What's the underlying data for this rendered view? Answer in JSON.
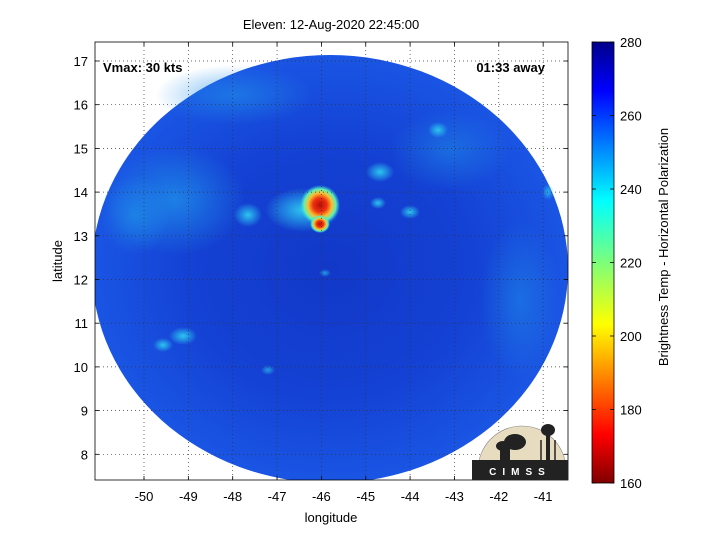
{
  "title": "Eleven: 12-Aug-2020 22:45:00",
  "vmax_label": "Vmax: 30 kts",
  "time_label": "01:33 away",
  "xlabel": "longitude",
  "ylabel": "latitude",
  "colorbar": {
    "label": "Brightness Temp - Horizontal Polarization",
    "ticks": [
      "280",
      "260",
      "240",
      "220",
      "200",
      "180",
      "160"
    ],
    "range": [
      160,
      280
    ]
  },
  "x_ticks": [
    "-50",
    "-49",
    "-48",
    "-47",
    "-46",
    "-45",
    "-44",
    "-43",
    "-42",
    "-41"
  ],
  "y_ticks": [
    "17",
    "16",
    "15",
    "14",
    "13",
    "12",
    "11",
    "10",
    "9",
    "8"
  ],
  "logo": {
    "text": "CIMSS",
    "icon": "cimss-logo-icon"
  },
  "colors": {
    "background_field": "#1646d8",
    "cold_core": "#d41c10",
    "colorbar_high": "#00008a",
    "colorbar_low": "#800000"
  }
}
